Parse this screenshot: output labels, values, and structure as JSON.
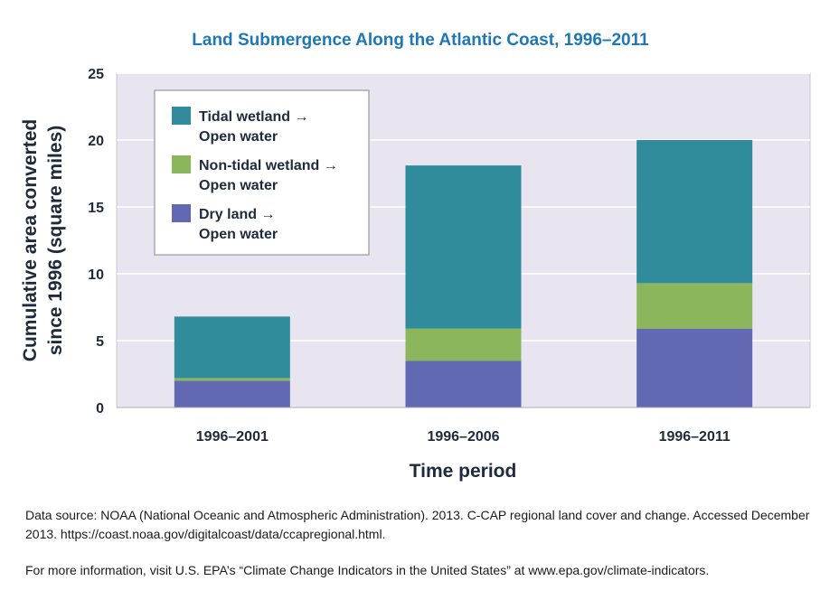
{
  "chart_data": {
    "type": "bar",
    "stacked": true,
    "title": "Land Submergence Along the Atlantic Coast, 1996–2011",
    "xlabel": "Time period",
    "ylabel_lines": [
      "Cumulative area converted",
      "since 1996 (square miles)"
    ],
    "categories": [
      "1996–2001",
      "1996–2006",
      "1996–2011"
    ],
    "series": [
      {
        "name": "Dry land → Open water",
        "name_lines": [
          "Dry land →",
          "Open water"
        ],
        "color": "#6268b2",
        "values": [
          2.0,
          3.5,
          5.9
        ]
      },
      {
        "name": "Non-tidal wetland → Open water",
        "name_lines": [
          "Non-tidal wetland →",
          "Open water"
        ],
        "color": "#8bb65c",
        "values": [
          0.2,
          2.4,
          3.4
        ]
      },
      {
        "name": "Tidal wetland → Open water",
        "name_lines": [
          "Tidal wetland →",
          "Open water"
        ],
        "color": "#308b9d",
        "values": [
          4.6,
          12.2,
          10.7
        ]
      }
    ],
    "legend_order": [
      2,
      1,
      0
    ],
    "ylim": [
      0,
      25
    ],
    "yticks": [
      0,
      5,
      10,
      15,
      20,
      25
    ],
    "grid": true,
    "legend_position": "top-left",
    "plot_background": "#e8e5f0"
  },
  "notes": {
    "source": "Data source: NOAA (National Oceanic and Atmospheric Administration). 2013. C-CAP regional land cover and change. Accessed December 2013. https://coast.noaa.gov/digitalcoast/data/ccapregional.html.",
    "info": "For more information, visit U.S. EPA’s “Climate Change Indicators in the United States” at www.epa.gov/climate-indicators."
  }
}
